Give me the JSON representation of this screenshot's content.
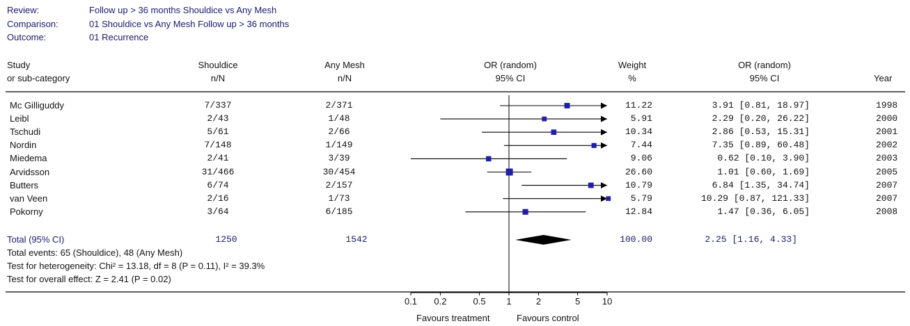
{
  "meta": {
    "review_label": "Review:",
    "review": "Follow up > 36 months Shouldice vs Any Mesh",
    "comparison_label": "Comparison:",
    "comparison": "01 Shouldice vs Any Mesh Follow up > 36 months",
    "outcome_label": "Outcome:",
    "outcome": "01 Recurrence"
  },
  "columns": {
    "study_line1": "Study",
    "study_line2": "or sub-category",
    "treat_line1": "Shouldice",
    "treat_line2": "n/N",
    "control_line1": "Any Mesh",
    "control_line2": "n/N",
    "plot_line1": "OR (random)",
    "plot_line2": "95% CI",
    "weight_line1": "Weight",
    "weight_line2": "%",
    "or_line1": "OR (random)",
    "or_line2": "95% CI",
    "year": "Year"
  },
  "chart_data": {
    "type": "forest",
    "x_scale": "log",
    "xlim": [
      0.1,
      10
    ],
    "reference_line": 1,
    "x_ticks": [
      "0.1",
      "0.2",
      "0.5",
      "1",
      "2",
      "5",
      "10"
    ],
    "favours_left": "Favours treatment",
    "favours_right": "Favours control",
    "studies": [
      {
        "name": "Mc Gilliguddy",
        "treatment": "7/337",
        "control": "2/371",
        "weight": "11.22",
        "or_text": "3.91 [0.81, 18.97]",
        "year": "1998",
        "or": 3.91,
        "lo": 0.81,
        "hi": 18.97
      },
      {
        "name": "Leibl",
        "treatment": "2/43",
        "control": "1/48",
        "weight": "5.91",
        "or_text": "2.29 [0.20, 26.22]",
        "year": "2000",
        "or": 2.29,
        "lo": 0.2,
        "hi": 26.22
      },
      {
        "name": "Tschudi",
        "treatment": "5/61",
        "control": "2/66",
        "weight": "10.34",
        "or_text": "2.86 [0.53, 15.31]",
        "year": "2001",
        "or": 2.86,
        "lo": 0.53,
        "hi": 15.31
      },
      {
        "name": "Nordin",
        "treatment": "7/148",
        "control": "1/149",
        "weight": "7.44",
        "or_text": "7.35 [0.89, 60.48]",
        "year": "2002",
        "or": 7.35,
        "lo": 0.89,
        "hi": 60.48
      },
      {
        "name": "Miedema",
        "treatment": "2/41",
        "control": "3/39",
        "weight": "9.06",
        "or_text": "0.62 [0.10, 3.90]",
        "year": "2003",
        "or": 0.62,
        "lo": 0.1,
        "hi": 3.9
      },
      {
        "name": "Arvidsson",
        "treatment": "31/466",
        "control": "30/454",
        "weight": "26.60",
        "or_text": "1.01 [0.60, 1.69]",
        "year": "2005",
        "or": 1.01,
        "lo": 0.6,
        "hi": 1.69
      },
      {
        "name": "Butters",
        "treatment": "6/74",
        "control": "2/157",
        "weight": "10.79",
        "or_text": "6.84 [1.35, 34.74]",
        "year": "2007",
        "or": 6.84,
        "lo": 1.35,
        "hi": 34.74
      },
      {
        "name": "van Veen",
        "treatment": "2/16",
        "control": "1/73",
        "weight": "5.79",
        "or_text": "10.29 [0.87, 121.33]",
        "year": "2007",
        "or": 10.29,
        "lo": 0.87,
        "hi": 121.33
      },
      {
        "name": "Pokorny",
        "treatment": "3/64",
        "control": "6/185",
        "weight": "12.84",
        "or_text": "1.47 [0.36, 6.05]",
        "year": "2008",
        "or": 1.47,
        "lo": 0.36,
        "hi": 6.05
      }
    ],
    "total": {
      "label": "Total (95% CI)",
      "treatment": "1250",
      "control": "1542",
      "weight": "100.00",
      "or_text": "2.25 [1.16, 4.33]",
      "or": 2.25,
      "lo": 1.16,
      "hi": 4.33
    },
    "notes": [
      "Total events: 65 (Shouldice), 48 (Any Mesh)",
      "Test for heterogeneity: Chi² = 13.18, df = 8 (P = 0.11), I² = 39.3%",
      "Test for overall effect: Z = 2.41 (P = 0.02)"
    ],
    "colors": {
      "marker": "#1f1fa8",
      "diamond": "#000000",
      "line": "#000000",
      "header_text": "#1a1a6e"
    }
  }
}
